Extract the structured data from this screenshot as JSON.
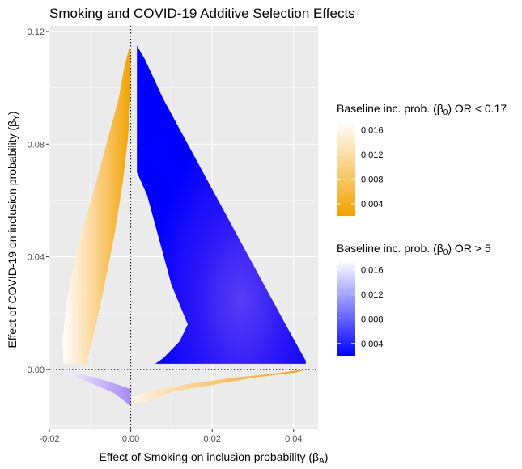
{
  "chart_data": {
    "type": "area",
    "title": "Smoking and COVID-19 Additive Selection Effects",
    "xlabel": "Effect of Smoking on inclusion probability (β",
    "xlabel_sub": "A",
    "xlabel_close": ")",
    "ylabel": "Effect of COVID-19 on inclusion probability (β",
    "ylabel_sub": "Y",
    "ylabel_close": ")",
    "xlim": [
      -0.02,
      0.046
    ],
    "ylim": [
      -0.021,
      0.122
    ],
    "x_ticks": [
      -0.02,
      0.0,
      0.02,
      0.04
    ],
    "x_tick_labels": [
      "-0.02",
      "0.00",
      "0.02",
      "0.04"
    ],
    "y_ticks": [
      0.0,
      0.04,
      0.08,
      0.12
    ],
    "y_tick_labels": [
      "0.00",
      "0.04",
      "0.08",
      "0.12"
    ],
    "grid": true,
    "reference_lines": {
      "x": 0,
      "y": 0,
      "style": "dotted"
    },
    "legends": [
      {
        "title": "Baseline inc. prob. (β",
        "title_sub": "0",
        "title_suffix": ") OR < 0.17",
        "gradient": [
          "#f2a200",
          "#ffffff"
        ],
        "range": [
          0.002,
          0.0175
        ],
        "ticks": [
          0.004,
          0.008,
          0.012,
          0.016
        ],
        "tick_labels": [
          "0.004",
          "0.008",
          "0.012",
          "0.016"
        ],
        "placement": "right"
      },
      {
        "title": "Baseline inc. prob. (β",
        "title_sub": "0",
        "title_suffix": ") OR > 5",
        "gradient": [
          "#0000ff",
          "#ffffff"
        ],
        "range": [
          0.002,
          0.0175
        ],
        "ticks": [
          0.004,
          0.008,
          0.012,
          0.016
        ],
        "tick_labels": [
          "0.004",
          "0.008",
          "0.012",
          "0.016"
        ],
        "placement": "right"
      }
    ],
    "series": [
      {
        "name": "OR < 0.17",
        "color_scale": "orange",
        "regions": [
          {
            "region": "upper-left",
            "outline": [
              [
                -0.0004,
                0.114
              ],
              [
                -0.0015,
                0.108
              ],
              [
                -0.003,
                0.096
              ],
              [
                -0.006,
                0.08
              ],
              [
                -0.009,
                0.064
              ],
              [
                -0.013,
                0.044
              ],
              [
                -0.0155,
                0.026
              ],
              [
                -0.0168,
                0.01
              ],
              [
                -0.0165,
                0.002
              ],
              [
                -0.011,
                0.002
              ],
              [
                -0.0095,
                0.01
              ],
              [
                -0.007,
                0.026
              ],
              [
                -0.004,
                0.048
              ],
              [
                -0.002,
                0.066
              ],
              [
                -0.0007,
                0.082
              ],
              [
                0.0,
                0.098
              ],
              [
                0.0,
                0.114
              ]
            ],
            "fill_low": 0.002,
            "fill_high": 0.017
          },
          {
            "region": "lower-right",
            "outline": [
              [
                0.0,
                -0.01
              ],
              [
                0.005,
                -0.0075
              ],
              [
                0.015,
                -0.005
              ],
              [
                0.025,
                -0.003
              ],
              [
                0.035,
                -0.0015
              ],
              [
                0.043,
                0.0
              ],
              [
                0.041,
                -0.001
              ],
              [
                0.03,
                -0.003
              ],
              [
                0.02,
                -0.0055
              ],
              [
                0.01,
                -0.008
              ],
              [
                0.004,
                -0.0115
              ],
              [
                0.0,
                -0.012
              ]
            ],
            "fill_low": 0.002,
            "fill_high": 0.017
          }
        ]
      },
      {
        "name": "OR > 5",
        "color_scale": "blue",
        "regions": [
          {
            "region": "upper-right",
            "outline": [
              [
                0.0015,
                0.115
              ],
              [
                0.0035,
                0.11
              ],
              [
                0.008,
                0.096
              ],
              [
                0.014,
                0.08
              ],
              [
                0.02,
                0.064
              ],
              [
                0.026,
                0.048
              ],
              [
                0.032,
                0.032
              ],
              [
                0.038,
                0.016
              ],
              [
                0.043,
                0.003
              ],
              [
                0.043,
                0.002
              ],
              [
                0.006,
                0.002
              ],
              [
                0.008,
                0.004
              ],
              [
                0.012,
                0.01
              ],
              [
                0.014,
                0.016
              ],
              [
                0.01,
                0.03
              ],
              [
                0.007,
                0.046
              ],
              [
                0.004,
                0.062
              ],
              [
                0.0015,
                0.07
              ]
            ],
            "fill_low": 0.002,
            "fill_high": 0.014
          },
          {
            "region": "lower-left",
            "outline": [
              [
                -0.0155,
                -0.0005
              ],
              [
                -0.01,
                -0.0025
              ],
              [
                -0.005,
                -0.0045
              ],
              [
                0.0,
                -0.007
              ],
              [
                0.0,
                -0.013
              ],
              [
                -0.004,
                -0.0085
              ],
              [
                -0.008,
                -0.006
              ],
              [
                -0.013,
                -0.003
              ]
            ],
            "fill_low": 0.008,
            "fill_high": 0.017
          }
        ]
      }
    ]
  }
}
